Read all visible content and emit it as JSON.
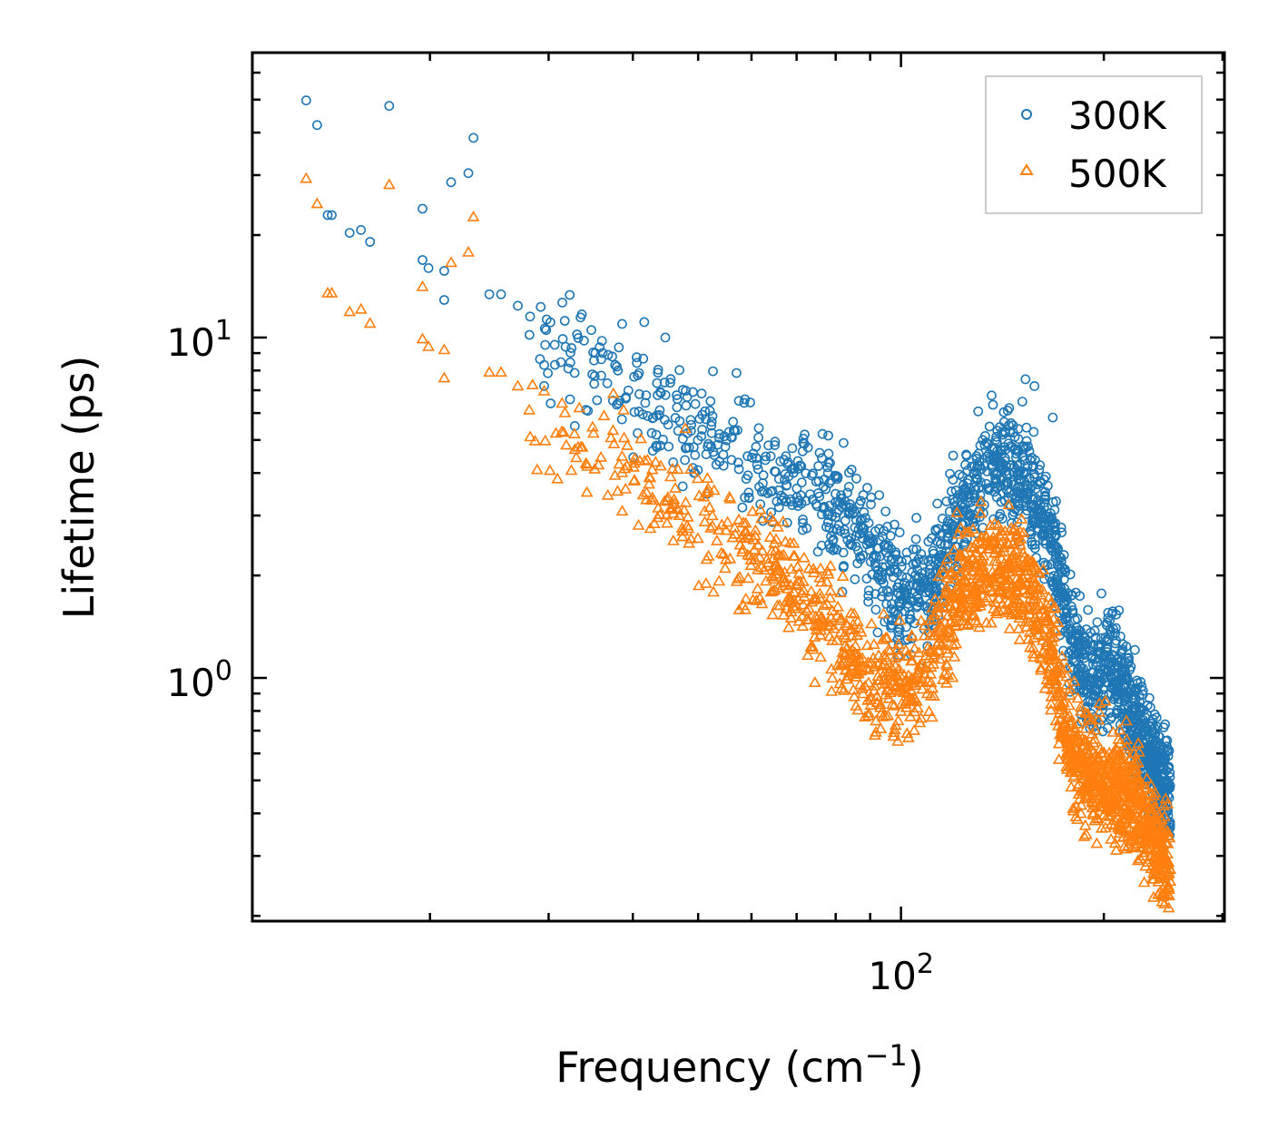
{
  "chart_data": {
    "type": "scatter",
    "xscale": "log",
    "yscale": "log",
    "xlabel": "Frequency (cm",
    "xlabel_sup": "−1",
    "xlabel_end": ")",
    "ylabel": "Lifetime (ps)",
    "xlim": [
      10.9,
      302
    ],
    "ylim": [
      0.193,
      68.7
    ],
    "x_major_ticks": [
      {
        "value": 100,
        "base": "10",
        "exp": "2"
      }
    ],
    "y_major_ticks": [
      {
        "value": 1,
        "base": "10",
        "exp": "0"
      },
      {
        "value": 10,
        "base": "10",
        "exp": "1"
      }
    ],
    "x_minor_ticks": [
      20,
      30,
      40,
      50,
      60,
      70,
      80,
      90,
      200,
      300
    ],
    "y_minor_ticks": [
      0.2,
      0.3,
      0.4,
      0.5,
      0.6,
      0.7,
      0.8,
      0.9,
      2,
      3,
      4,
      5,
      6,
      7,
      8,
      9,
      20,
      30,
      40,
      50,
      60
    ],
    "grid": false,
    "legend_position": "top-right",
    "series": [
      {
        "name": "300K",
        "color": "#1f77b4",
        "marker": "circle",
        "points": [
          [
            13.1,
            49.7
          ],
          [
            13.6,
            42.1
          ],
          [
            14.1,
            22.9
          ],
          [
            14.3,
            22.9
          ],
          [
            15.2,
            20.3
          ],
          [
            15.8,
            20.7
          ],
          [
            16.3,
            19.1
          ],
          [
            17.4,
            47.9
          ],
          [
            19.5,
            16.9
          ],
          [
            19.5,
            23.9
          ],
          [
            19.9,
            16.0
          ],
          [
            21.0,
            15.7
          ],
          [
            21.0,
            12.9
          ],
          [
            21.5,
            28.6
          ],
          [
            22.8,
            30.4
          ],
          [
            23.2,
            38.6
          ],
          [
            24.5,
            13.4
          ],
          [
            25.5,
            13.4
          ],
          [
            27.0,
            12.4
          ],
          [
            29.2,
            12.3
          ],
          [
            29.8,
            11.3
          ],
          [
            31.7,
            11.2
          ],
          [
            33.6,
            11.7
          ],
          [
            35.2,
            9.0
          ],
          [
            41.6,
            11.1
          ],
          [
            44.7,
            10.0
          ],
          [
            52.6,
            7.96
          ],
          [
            57.0,
            7.87
          ],
          [
            58.5,
            6.43
          ],
          [
            71.9,
            4.87
          ],
          [
            78.0,
            5.15
          ],
          [
            82.2,
            4.9
          ],
          [
            153.0,
            7.54
          ],
          [
            157.8,
            7.2
          ],
          [
            168.0,
            5.82
          ]
        ],
        "trend": [
          [
            28,
            10.5
          ],
          [
            40,
            6.6
          ],
          [
            55,
            4.8
          ],
          [
            75,
            3.35
          ],
          [
            87.5,
            2.6
          ],
          [
            100,
            1.75
          ],
          [
            108,
            1.7
          ],
          [
            123,
            3.15
          ],
          [
            135,
            4.3
          ],
          [
            153,
            3.8
          ],
          [
            168,
            2.5
          ],
          [
            179,
            1.33
          ],
          [
            190,
            0.92
          ],
          [
            205,
            1.18
          ],
          [
            222,
            0.77
          ],
          [
            251,
            0.44
          ]
        ],
        "spread": 1.45
      },
      {
        "name": "500K",
        "color": "#ff7f0e",
        "marker": "triangle",
        "points": [
          [
            13.1,
            29.3
          ],
          [
            13.6,
            24.7
          ],
          [
            14.1,
            13.5
          ],
          [
            14.3,
            13.5
          ],
          [
            15.2,
            11.9
          ],
          [
            15.8,
            12.1
          ],
          [
            16.3,
            11.0
          ],
          [
            17.4,
            28.1
          ],
          [
            19.5,
            9.9
          ],
          [
            19.5,
            14.1
          ],
          [
            19.9,
            9.4
          ],
          [
            21.0,
            9.2
          ],
          [
            21.0,
            7.6
          ],
          [
            21.5,
            16.6
          ],
          [
            22.8,
            17.8
          ],
          [
            23.2,
            22.6
          ],
          [
            24.5,
            7.9
          ],
          [
            25.5,
            7.9
          ],
          [
            27.0,
            7.2
          ]
        ],
        "trend": [
          [
            28,
            6.2
          ],
          [
            40,
            4.0
          ],
          [
            55,
            2.6
          ],
          [
            75,
            1.6
          ],
          [
            87.5,
            1.05
          ],
          [
            100,
            0.93
          ],
          [
            108,
            1.0
          ],
          [
            123,
            1.9
          ],
          [
            135,
            2.2
          ],
          [
            153,
            1.9
          ],
          [
            168,
            1.18
          ],
          [
            179,
            0.6
          ],
          [
            195,
            0.5
          ],
          [
            222,
            0.44
          ],
          [
            251,
            0.27
          ]
        ],
        "spread": 1.45
      }
    ]
  }
}
